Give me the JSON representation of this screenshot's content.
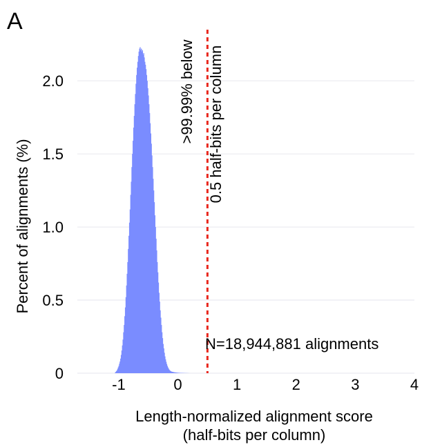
{
  "chart_data": {
    "type": "bar",
    "panel_label": "A",
    "xlabel_line1": "Length-normalized alignment score",
    "xlabel_line2": "(half-bits per column)",
    "ylabel": "Percent of alignments (%)",
    "xlim": [
      -1.7,
      4.0
    ],
    "ylim": [
      0,
      2.35
    ],
    "x_ticks": [
      -1,
      0,
      1,
      2,
      3,
      4
    ],
    "x_tick_labels": [
      "-1",
      "0",
      "1",
      "2",
      "3",
      "4"
    ],
    "y_ticks": [
      0,
      0.5,
      1.0,
      1.5,
      2.0
    ],
    "y_tick_labels": [
      "0",
      "0.5",
      "1.0",
      "1.5",
      "2.0"
    ],
    "grid": true,
    "bar_color": "#7a8cff",
    "threshold": {
      "x": 0.5,
      "color": "#e8261c",
      "label_line1": ">99.99% below",
      "label_line2": "0.5 half-bits per column"
    },
    "count_label": "N=18,944,881 alignments",
    "bin_width": 0.01,
    "histogram": {
      "x": [
        -1.06,
        -1.05,
        -1.04,
        -1.03,
        -1.02,
        -1.01,
        -1.0,
        -0.99,
        -0.98,
        -0.97,
        -0.96,
        -0.95,
        -0.94,
        -0.93,
        -0.92,
        -0.91,
        -0.9,
        -0.89,
        -0.88,
        -0.87,
        -0.86,
        -0.85,
        -0.84,
        -0.83,
        -0.82,
        -0.81,
        -0.8,
        -0.79,
        -0.78,
        -0.77,
        -0.76,
        -0.75,
        -0.74,
        -0.73,
        -0.72,
        -0.71,
        -0.7,
        -0.69,
        -0.68,
        -0.67,
        -0.66,
        -0.65,
        -0.64,
        -0.63,
        -0.62,
        -0.61,
        -0.6,
        -0.59,
        -0.58,
        -0.57,
        -0.56,
        -0.55,
        -0.54,
        -0.53,
        -0.52,
        -0.51,
        -0.5,
        -0.49,
        -0.48,
        -0.47,
        -0.46,
        -0.45,
        -0.44,
        -0.43,
        -0.42,
        -0.41,
        -0.4,
        -0.39,
        -0.38,
        -0.37,
        -0.36,
        -0.35,
        -0.34,
        -0.33,
        -0.32,
        -0.31,
        -0.3,
        -0.29,
        -0.28,
        -0.27,
        -0.26,
        -0.25,
        -0.24,
        -0.23,
        -0.22,
        -0.21,
        -0.2,
        -0.19,
        -0.18,
        -0.17,
        -0.16,
        -0.15,
        -0.14,
        -0.13,
        -0.12,
        -0.11,
        -0.1,
        -0.09,
        -0.08,
        -0.07,
        -0.06,
        -0.05,
        -0.04,
        -0.03,
        -0.02,
        -0.01,
        0.0,
        0.01,
        0.02,
        0.03,
        0.04,
        0.05,
        0.06,
        0.07,
        0.08,
        0.09,
        0.1,
        0.11,
        0.12,
        0.13,
        0.14,
        0.15,
        0.16,
        0.17,
        0.18,
        0.19,
        0.2
      ],
      "y": [
        0.005,
        0.01,
        0.015,
        0.02,
        0.03,
        0.04,
        0.05,
        0.065,
        0.08,
        0.1,
        0.125,
        0.155,
        0.19,
        0.23,
        0.28,
        0.33,
        0.39,
        0.45,
        0.52,
        0.6,
        0.68,
        0.76,
        0.85,
        0.94,
        1.03,
        1.12,
        1.22,
        1.31,
        1.41,
        1.5,
        1.59,
        1.68,
        1.76,
        1.84,
        1.91,
        1.98,
        2.04,
        2.09,
        2.13,
        2.17,
        2.2,
        2.22,
        2.23,
        2.21,
        2.22,
        2.2,
        2.21,
        2.18,
        2.19,
        2.16,
        2.13,
        2.11,
        2.08,
        2.04,
        2.0,
        1.95,
        1.9,
        1.84,
        1.78,
        1.71,
        1.64,
        1.57,
        1.49,
        1.41,
        1.33,
        1.25,
        1.17,
        1.08,
        1.0,
        0.92,
        0.84,
        0.76,
        0.69,
        0.62,
        0.55,
        0.49,
        0.43,
        0.38,
        0.33,
        0.28,
        0.24,
        0.2,
        0.17,
        0.14,
        0.115,
        0.095,
        0.078,
        0.063,
        0.05,
        0.04,
        0.032,
        0.025,
        0.02,
        0.016,
        0.013,
        0.011,
        0.01,
        0.009,
        0.008,
        0.007,
        0.006,
        0.0055,
        0.005,
        0.0045,
        0.004,
        0.0035,
        0.003,
        0.0028,
        0.0026,
        0.0024,
        0.0022,
        0.002,
        0.0018,
        0.0016,
        0.0014,
        0.0012,
        0.0011,
        0.001,
        0.0009,
        0.0008,
        0.0007,
        0.0006,
        0.0005,
        0.0004,
        0.0003,
        0.0002,
        0.0001
      ]
    }
  }
}
